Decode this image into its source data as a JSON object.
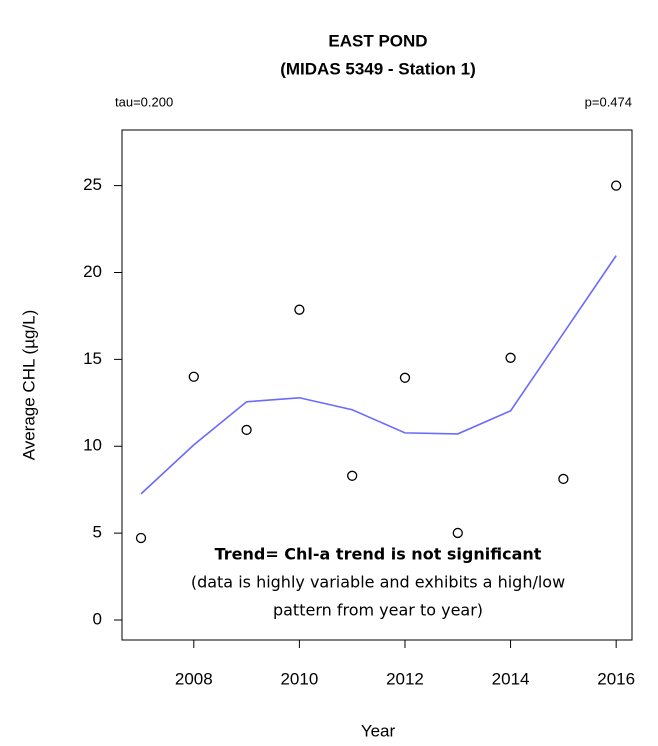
{
  "chart_data": {
    "type": "scatter",
    "title": [
      "EAST POND",
      "(MIDAS 5349 - Station 1)"
    ],
    "left_note": "tau=0.200",
    "right_note": "p=0.474",
    "annotation": [
      "Trend= Chl-a trend is not significant",
      "(data is highly variable and exhibits a high/low",
      "pattern from year to year)"
    ],
    "xlabel": "Year",
    "ylabel": "Average CHL (µg/L)",
    "x": [
      2007,
      2008,
      2009,
      2010,
      2011,
      2012,
      2013,
      2014,
      2015,
      2016
    ],
    "series": [
      {
        "type": "scatter",
        "color": "#000000",
        "values": [
          4.72,
          14.0,
          10.94,
          17.86,
          8.3,
          13.94,
          5.01,
          15.09,
          8.12,
          25.0
        ]
      },
      {
        "type": "line",
        "color": "#6a6aff",
        "values": [
          7.26,
          10.08,
          12.56,
          12.79,
          12.1,
          10.77,
          10.71,
          12.04,
          16.5,
          20.97
        ]
      }
    ],
    "xlim": [
      2006.64,
      2016.3
    ],
    "ylim": [
      -1.15,
      28.2
    ],
    "xticks": [
      2008,
      2010,
      2012,
      2014,
      2016
    ],
    "yticks": [
      0,
      5,
      10,
      15,
      20,
      25
    ]
  }
}
